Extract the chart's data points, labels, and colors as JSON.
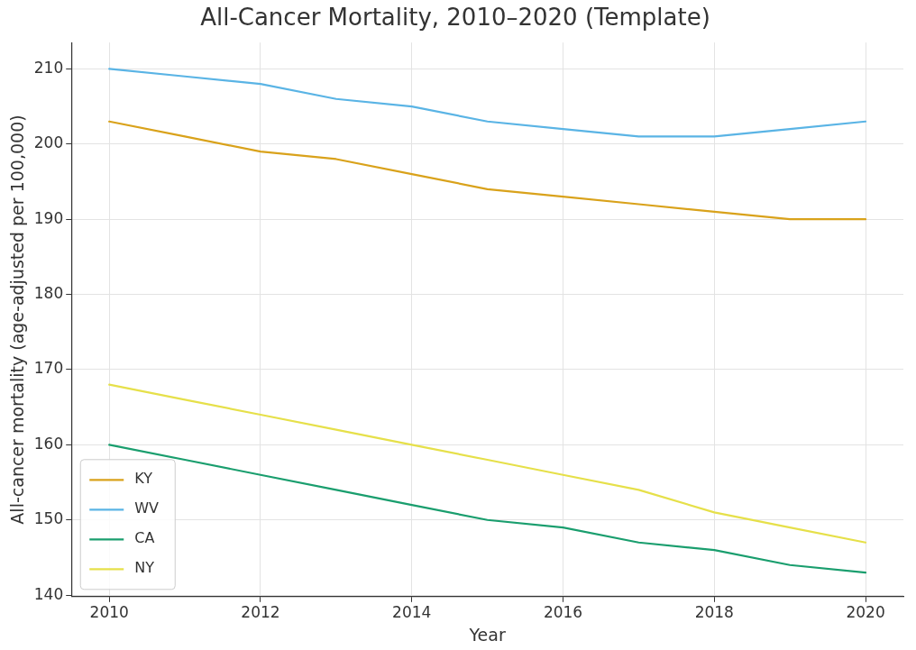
{
  "chart_data": {
    "type": "line",
    "title": "All-Cancer Mortality, 2010–2020 (Template)",
    "xlabel": "Year",
    "ylabel": "All-cancer mortality (age-adjusted per 100,000)",
    "x": [
      2010,
      2011,
      2012,
      2013,
      2014,
      2015,
      2016,
      2017,
      2018,
      2019,
      2020
    ],
    "series": [
      {
        "name": "KY",
        "color": "#d9a21b",
        "values": [
          203,
          201,
          199,
          198,
          196,
          194,
          193,
          192,
          191,
          190,
          190
        ]
      },
      {
        "name": "WV",
        "color": "#5ab4e5",
        "values": [
          210,
          209,
          208,
          206,
          205,
          203,
          202,
          201,
          201,
          202,
          203
        ]
      },
      {
        "name": "CA",
        "color": "#1a9e6e",
        "values": [
          160,
          158,
          156,
          154,
          152,
          150,
          149,
          147,
          146,
          144,
          143
        ]
      },
      {
        "name": "NY",
        "color": "#e6e04a",
        "values": [
          168,
          166,
          164,
          162,
          160,
          158,
          156,
          154,
          151,
          149,
          147
        ]
      }
    ],
    "xlim": [
      2009.5,
      2020.5
    ],
    "xticks": [
      2010,
      2012,
      2014,
      2016,
      2018,
      2020
    ],
    "ylim": [
      139.8,
      213.5
    ],
    "yticks": [
      140,
      150,
      160,
      170,
      180,
      190,
      200,
      210
    ],
    "grid": true,
    "legend": "bottom left",
    "marker": "none",
    "line_style": "solid"
  }
}
